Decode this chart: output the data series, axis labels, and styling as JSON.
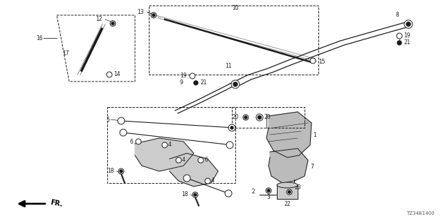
{
  "bg_color": "#ffffff",
  "lc": "#1a1a1a",
  "part_code": "TZ34B1400",
  "figsize": [
    6.4,
    3.2
  ],
  "dpi": 100
}
